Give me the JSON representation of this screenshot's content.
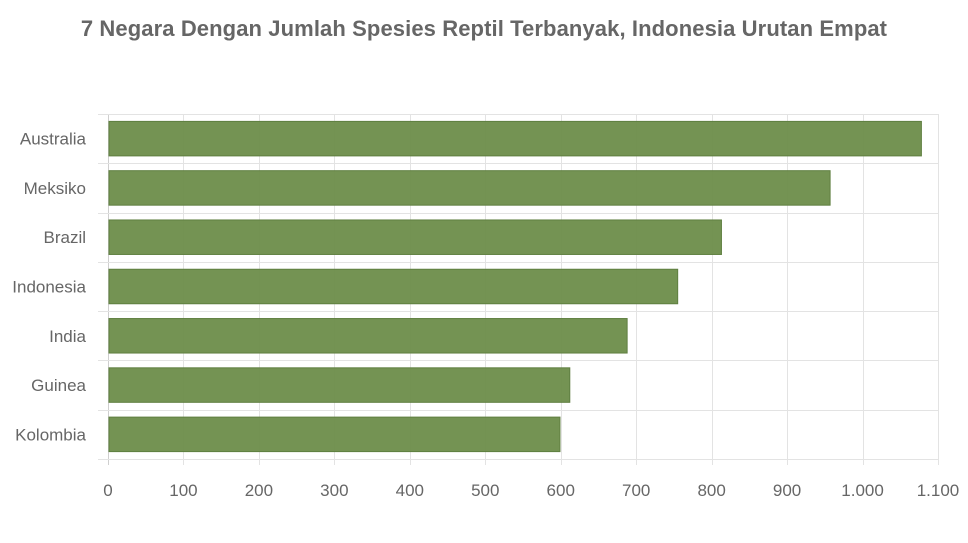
{
  "chart_data": {
    "type": "bar",
    "orientation": "horizontal",
    "title": "7 Negara Dengan Jumlah Spesies Reptil Terbanyak, Indonesia Urutan Empat",
    "xlabel": "",
    "ylabel": "",
    "categories": [
      "Australia",
      "Meksiko",
      "Brazil",
      "Indonesia",
      "India",
      "Guinea",
      "Kolombia"
    ],
    "values": [
      1078,
      957,
      813,
      755,
      688,
      612,
      599
    ],
    "xlim": [
      0,
      1100
    ],
    "xticks": [
      "0",
      "100",
      "200",
      "300",
      "400",
      "500",
      "600",
      "700",
      "800",
      "900",
      "1.000",
      "1.100"
    ],
    "grid": true,
    "legend": "none",
    "bar_color": "#6e8f4c"
  }
}
